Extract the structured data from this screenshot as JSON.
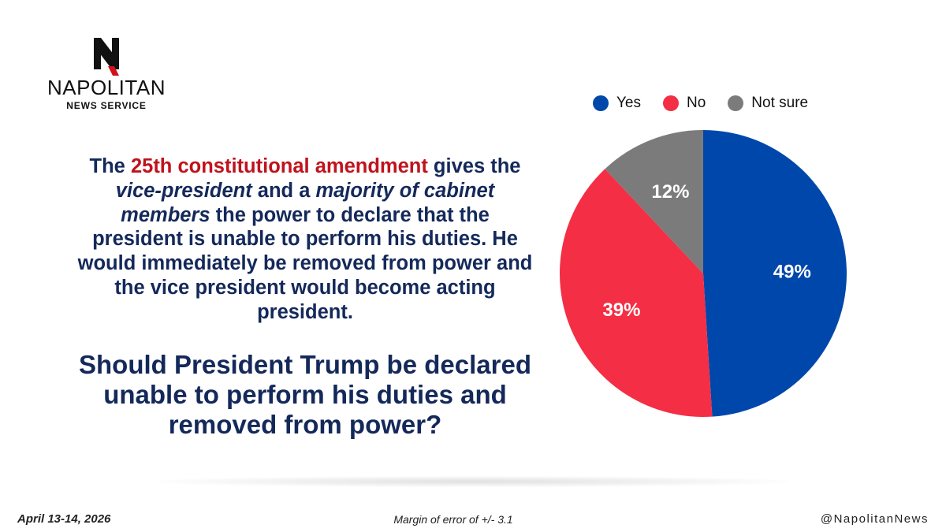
{
  "brand": {
    "name": "NAPOLITAN",
    "sub": "NEWS SERVICE",
    "handle": "@NapolitanNews"
  },
  "context": {
    "t1": "The ",
    "highlight": "25th constitutional amendment",
    "t2": " gives the ",
    "em1": "vice-president",
    "t3": " and a ",
    "em2": "majority of cabinet members",
    "t4": " the power to declare that the president is unable to perform his duties. He would immediately be removed from power and the vice president would become acting president."
  },
  "question": "Should President Trump be declared unable to perform his duties and removed from power?",
  "footer": {
    "date": "April 13-14, 2026",
    "moe": "Margin of error of +/- 3.1"
  },
  "colors": {
    "yes": "#0047ab",
    "no": "#f42e45",
    "not_sure": "#7b7b7b",
    "text_dark": "#14295a",
    "highlight": "#c0131d"
  },
  "chart_data": {
    "type": "pie",
    "title": "",
    "legend_position": "top",
    "slices": [
      {
        "label": "Yes",
        "value": 49,
        "display": "49%",
        "color": "#0047ab"
      },
      {
        "label": "No",
        "value": 39,
        "display": "39%",
        "color": "#f42e45"
      },
      {
        "label": "Not sure",
        "value": 12,
        "display": "12%",
        "color": "#7b7b7b"
      }
    ]
  }
}
